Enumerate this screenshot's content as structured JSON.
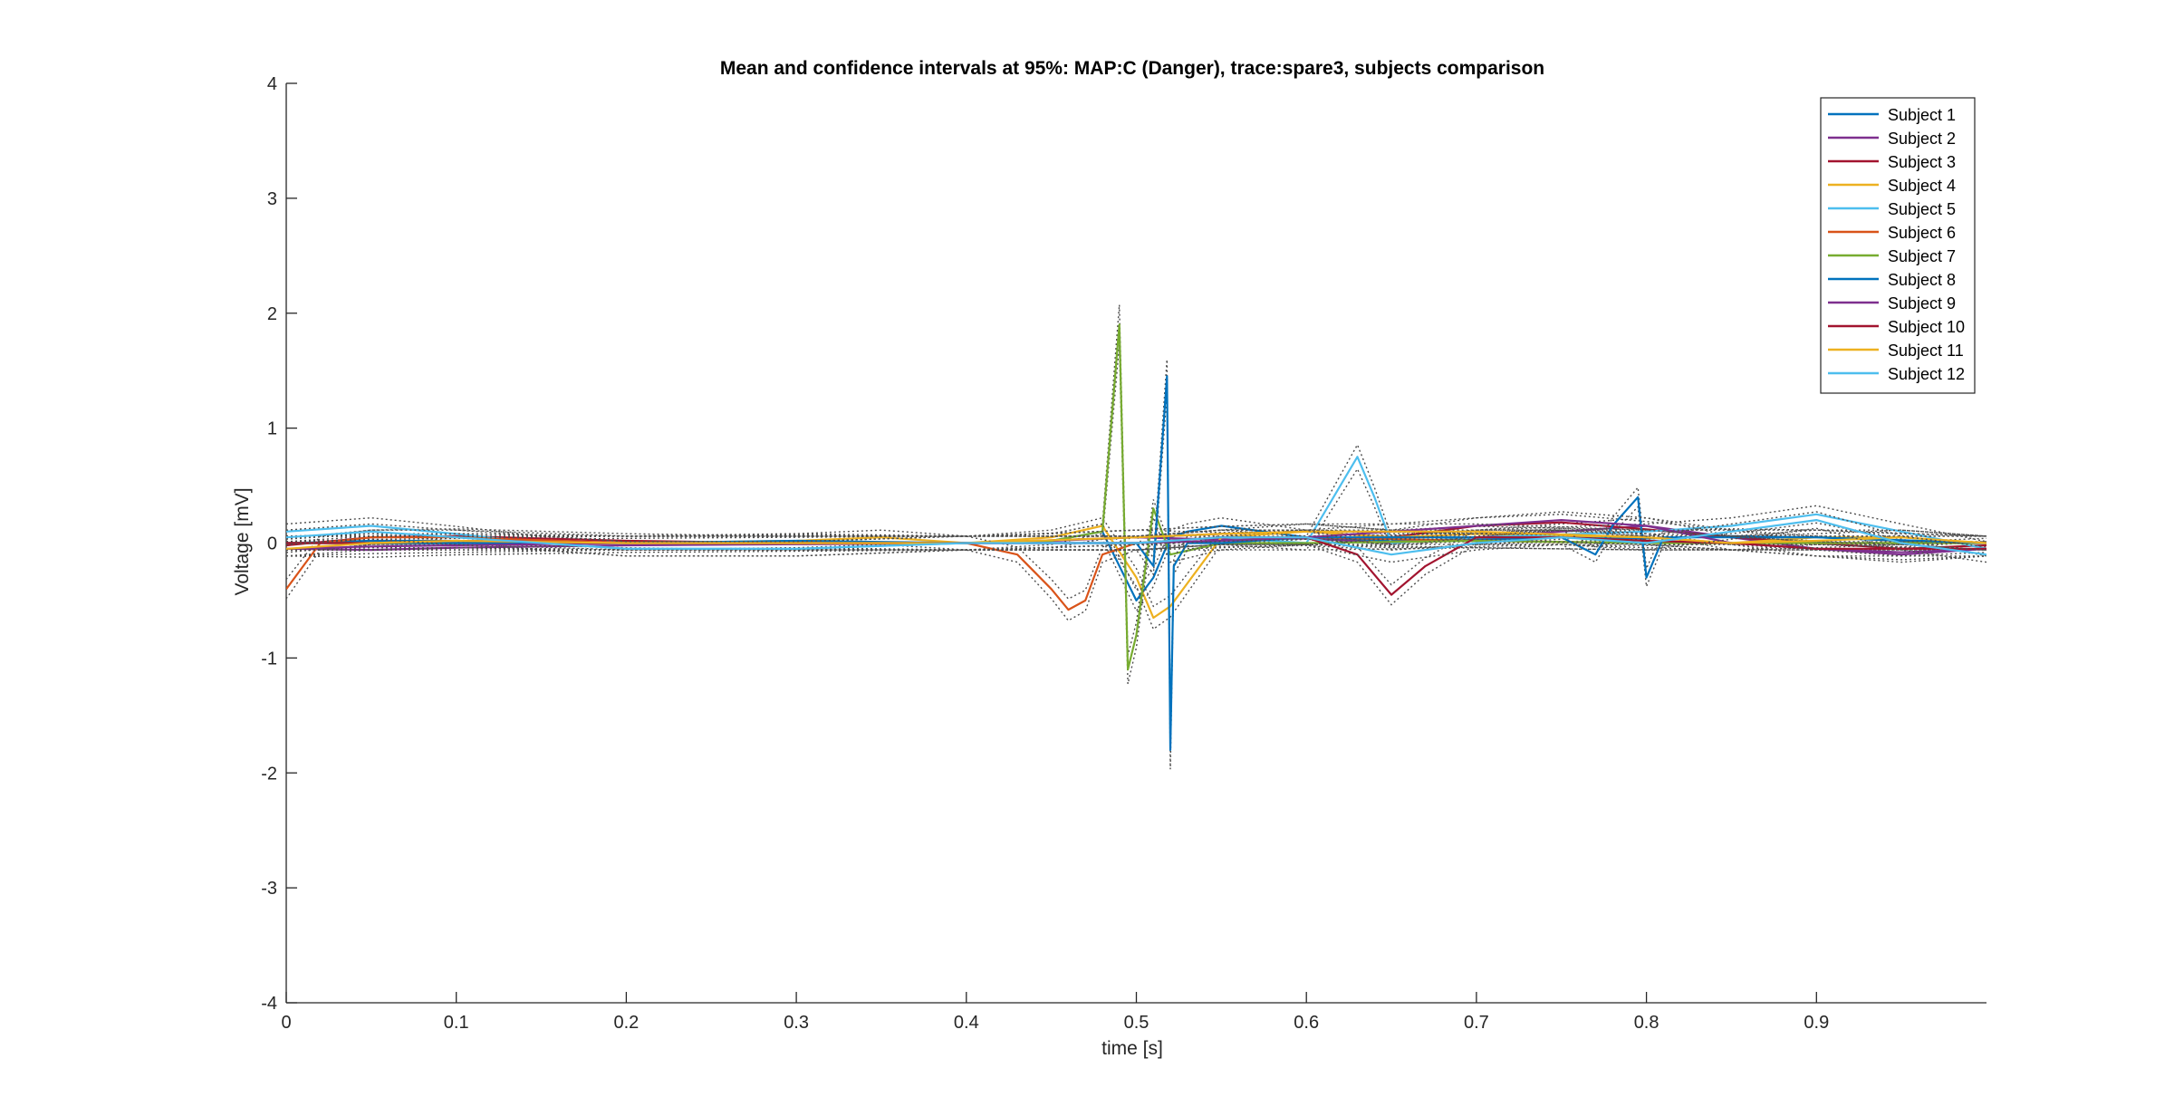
{
  "chart_data": {
    "type": "line",
    "title": "Mean and confidence intervals at 95%: MAP:C (Danger), trace:spare3, subjects comparison",
    "xlabel": "time [s]",
    "ylabel": "Voltage [mV]",
    "xlim": [
      0,
      1.0
    ],
    "ylim": [
      -4,
      4
    ],
    "xticks": [
      0,
      0.1,
      0.2,
      0.3,
      0.4,
      0.5,
      0.6,
      0.7,
      0.8,
      0.9
    ],
    "xtick_labels": [
      "0",
      "0.1",
      "0.2",
      "0.3",
      "0.4",
      "0.5",
      "0.6",
      "0.7",
      "0.8",
      "0.9"
    ],
    "yticks": [
      -4,
      -3,
      -2,
      -1,
      0,
      1,
      2,
      3,
      4
    ],
    "ytick_labels": [
      "-4",
      "-3",
      "-2",
      "-1",
      "0",
      "1",
      "2",
      "3",
      "4"
    ],
    "grid": false,
    "legend_position": "top-right",
    "confidence_bounds": "dotted dark gray lines around each series mean",
    "series": [
      {
        "name": "Subject 1",
        "color": "#0072BD",
        "x": [
          0,
          0.05,
          0.1,
          0.15,
          0.2,
          0.25,
          0.3,
          0.35,
          0.4,
          0.45,
          0.48,
          0.5,
          0.51,
          0.52,
          0.53,
          0.55,
          0.6,
          0.65,
          0.7,
          0.75,
          0.8,
          0.85,
          0.9,
          0.95,
          1.0
        ],
        "y": [
          0.0,
          0.02,
          0.02,
          0.01,
          0.0,
          0.0,
          0.01,
          0.0,
          0.0,
          0.02,
          0.1,
          -0.5,
          -0.3,
          0.05,
          0.1,
          0.15,
          0.05,
          0.02,
          0.03,
          0.05,
          0.04,
          0.06,
          0.05,
          0.02,
          0.0
        ]
      },
      {
        "name": "Subject 2",
        "color": "#7E2F8E",
        "x": [
          0,
          0.05,
          0.1,
          0.2,
          0.3,
          0.4,
          0.45,
          0.5,
          0.55,
          0.6,
          0.65,
          0.7,
          0.75,
          0.8,
          0.85,
          0.9,
          0.95,
          1.0
        ],
        "y": [
          -0.05,
          -0.06,
          -0.04,
          -0.02,
          -0.01,
          0.0,
          0.02,
          0.05,
          0.03,
          0.04,
          0.0,
          0.05,
          0.1,
          0.15,
          0.05,
          -0.05,
          -0.1,
          -0.05
        ]
      },
      {
        "name": "Subject 3",
        "color": "#A2142F",
        "x": [
          0,
          0.05,
          0.1,
          0.2,
          0.3,
          0.4,
          0.5,
          0.55,
          0.6,
          0.65,
          0.7,
          0.75,
          0.8,
          0.85,
          0.9,
          0.95,
          1.0
        ],
        "y": [
          -0.02,
          0.05,
          0.06,
          0.02,
          0.0,
          0.0,
          0.05,
          0.08,
          0.1,
          0.05,
          0.15,
          0.18,
          0.12,
          0.05,
          0.0,
          -0.05,
          -0.02
        ]
      },
      {
        "name": "Subject 4",
        "color": "#EDB120",
        "x": [
          0,
          0.05,
          0.1,
          0.2,
          0.3,
          0.35,
          0.4,
          0.45,
          0.48,
          0.5,
          0.51,
          0.52,
          0.55,
          0.6,
          0.65,
          0.7,
          0.8,
          0.85,
          0.9,
          0.95,
          1.0
        ],
        "y": [
          0.0,
          0.0,
          0.02,
          0.0,
          0.02,
          0.05,
          0.0,
          0.05,
          0.15,
          -0.3,
          -0.65,
          -0.55,
          0.05,
          0.1,
          0.05,
          0.08,
          0.05,
          0.0,
          0.05,
          0.05,
          0.0
        ]
      },
      {
        "name": "Subject 5",
        "color": "#4DBEEE",
        "x": [
          0,
          0.05,
          0.1,
          0.15,
          0.2,
          0.3,
          0.4,
          0.5,
          0.55,
          0.6,
          0.62,
          0.63,
          0.64,
          0.65,
          0.7,
          0.8,
          0.85,
          0.9,
          0.95,
          1.0
        ],
        "y": [
          0.1,
          0.15,
          0.08,
          0.0,
          -0.05,
          -0.05,
          0.0,
          0.0,
          0.05,
          0.0,
          0.5,
          0.75,
          0.4,
          0.0,
          0.05,
          0.1,
          0.15,
          0.25,
          0.1,
          -0.05
        ]
      },
      {
        "name": "Subject 6",
        "color": "#D95319",
        "x": [
          0,
          0.01,
          0.02,
          0.05,
          0.1,
          0.2,
          0.3,
          0.4,
          0.43,
          0.45,
          0.46,
          0.47,
          0.48,
          0.5,
          0.55,
          0.6,
          0.7,
          0.8,
          0.9,
          1.0
        ],
        "y": [
          -0.4,
          -0.2,
          0.0,
          0.05,
          0.05,
          0.0,
          0.0,
          0.0,
          -0.1,
          -0.4,
          -0.58,
          -0.5,
          -0.1,
          0.0,
          0.05,
          0.05,
          0.02,
          0.0,
          0.0,
          0.0
        ]
      },
      {
        "name": "Subject 7",
        "color": "#77AC30",
        "x": [
          0,
          0.1,
          0.2,
          0.3,
          0.4,
          0.45,
          0.48,
          0.49,
          0.495,
          0.5,
          0.51,
          0.52,
          0.55,
          0.6,
          0.7,
          0.8,
          0.9,
          1.0
        ],
        "y": [
          0.0,
          0.0,
          0.0,
          0.0,
          0.0,
          0.02,
          0.1,
          1.9,
          -1.1,
          -0.8,
          0.3,
          -0.1,
          0.0,
          0.0,
          0.02,
          0.0,
          0.0,
          0.0
        ]
      },
      {
        "name": "Subject 8",
        "color": "#0072BD",
        "x": [
          0,
          0.1,
          0.2,
          0.3,
          0.4,
          0.45,
          0.5,
          0.51,
          0.518,
          0.52,
          0.522,
          0.53,
          0.55,
          0.6,
          0.7,
          0.75,
          0.77,
          0.78,
          0.795,
          0.8,
          0.81,
          0.85,
          0.9,
          1.0
        ],
        "y": [
          0.0,
          0.0,
          0.0,
          0.02,
          0.0,
          0.0,
          0.0,
          -0.2,
          1.45,
          -1.8,
          -0.2,
          0.0,
          0.0,
          0.05,
          0.05,
          0.05,
          -0.1,
          0.15,
          0.4,
          -0.3,
          0.05,
          0.05,
          0.05,
          0.0
        ]
      },
      {
        "name": "Subject 9",
        "color": "#7E2F8E",
        "x": [
          0,
          0.05,
          0.1,
          0.2,
          0.3,
          0.4,
          0.5,
          0.55,
          0.6,
          0.65,
          0.7,
          0.75,
          0.8,
          0.85,
          0.9,
          0.95,
          1.0
        ],
        "y": [
          -0.05,
          -0.03,
          -0.02,
          0.0,
          0.0,
          0.0,
          0.0,
          0.02,
          0.05,
          0.1,
          0.15,
          0.2,
          0.15,
          0.0,
          -0.05,
          -0.08,
          -0.05
        ]
      },
      {
        "name": "Subject 10",
        "color": "#A2142F",
        "x": [
          0,
          0.05,
          0.1,
          0.2,
          0.3,
          0.4,
          0.5,
          0.55,
          0.6,
          0.63,
          0.65,
          0.67,
          0.7,
          0.75,
          0.8,
          0.85,
          0.9,
          0.95,
          1.0
        ],
        "y": [
          0.0,
          0.0,
          0.02,
          0.0,
          0.0,
          0.0,
          0.0,
          0.05,
          0.05,
          -0.1,
          -0.45,
          -0.2,
          0.05,
          0.05,
          0.02,
          0.0,
          -0.05,
          -0.05,
          -0.05
        ]
      },
      {
        "name": "Subject 11",
        "color": "#EDB120",
        "x": [
          0,
          0.05,
          0.1,
          0.2,
          0.3,
          0.4,
          0.5,
          0.55,
          0.6,
          0.7,
          0.8,
          0.85,
          0.9,
          0.95,
          1.0
        ],
        "y": [
          -0.05,
          0.0,
          0.02,
          0.0,
          0.0,
          0.0,
          0.05,
          0.08,
          0.1,
          0.1,
          0.05,
          0.0,
          0.02,
          0.05,
          0.0
        ]
      },
      {
        "name": "Subject 12",
        "color": "#4DBEEE",
        "x": [
          0,
          0.05,
          0.1,
          0.2,
          0.3,
          0.4,
          0.5,
          0.55,
          0.6,
          0.65,
          0.7,
          0.75,
          0.8,
          0.85,
          0.9,
          0.95,
          1.0
        ],
        "y": [
          0.05,
          0.1,
          0.05,
          -0.05,
          -0.05,
          0.0,
          0.0,
          0.05,
          0.05,
          -0.1,
          0.0,
          0.05,
          0.0,
          0.1,
          0.2,
          0.0,
          -0.1
        ]
      }
    ]
  }
}
